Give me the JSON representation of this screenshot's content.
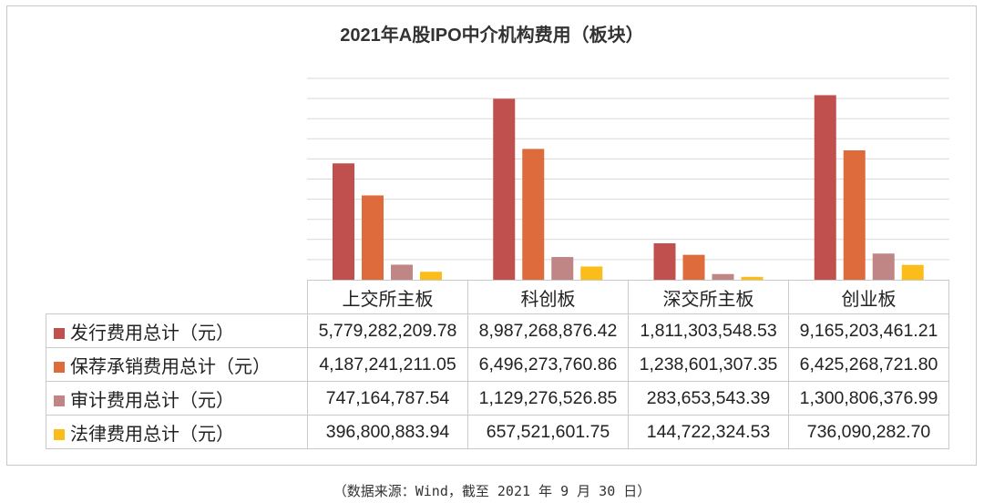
{
  "chart_data": {
    "type": "bar",
    "title": "2021年A股IPO中介机构费用（板块）",
    "categories": [
      "上交所主板",
      "科创板",
      "深交所主板",
      "创业板"
    ],
    "series": [
      {
        "name": "发行费用总计（元）",
        "color": "#c0504d",
        "values": [
          5779282209.78,
          8987268876.42,
          1811303548.53,
          9165203461.21
        ],
        "labels": [
          "5,779,282,209.78",
          "8,987,268,876.42",
          "1,811,303,548.53",
          "9,165,203,461.21"
        ]
      },
      {
        "name": "保荐承销费用总计（元）",
        "color": "#dd6b3c",
        "values": [
          4187241211.05,
          6496273760.86,
          1238601307.35,
          6425268721.8
        ],
        "labels": [
          "4,187,241,211.05",
          "6,496,273,760.86",
          "1,238,601,307.35",
          "6,425,268,721.80"
        ]
      },
      {
        "name": "审计费用总计（元）",
        "color": "#c08585",
        "values": [
          747164787.54,
          1129276526.85,
          283653543.39,
          1300806376.99
        ],
        "labels": [
          "747,164,787.54",
          "1,129,276,526.85",
          "283,653,543.39",
          "1,300,806,376.99"
        ]
      },
      {
        "name": "法律费用总计（元）",
        "color": "#fbbd1a",
        "values": [
          396800883.94,
          657521601.75,
          144722324.53,
          736090282.7
        ],
        "labels": [
          "396,800,883.94",
          "657,521,601.75",
          "144,722,324.53",
          "736,090,282.70"
        ]
      }
    ],
    "ylim": [
      0,
      10000000000
    ],
    "y_gridlines": [
      1000000000,
      2000000000,
      3000000000,
      4000000000,
      5000000000,
      6000000000,
      7000000000,
      8000000000,
      9000000000,
      10000000000
    ],
    "grid": true,
    "legend": "data table"
  },
  "footer": {
    "source": "（数据来源：Wind，截至 2021 年 9 月 30 日）"
  }
}
